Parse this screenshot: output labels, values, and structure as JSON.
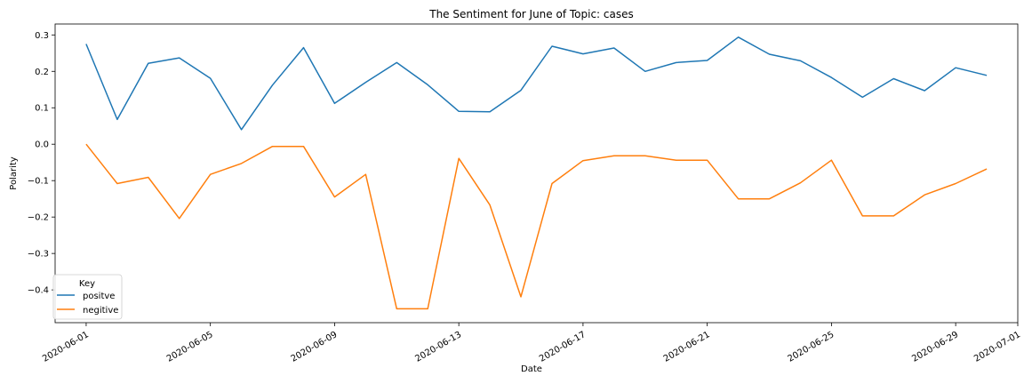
{
  "chart_data": {
    "type": "line",
    "title": "The Sentiment for June of Topic: cases",
    "xlabel": "Date",
    "ylabel": "Polarity",
    "x_start": "2020-06-01",
    "x": [
      "2020-06-01",
      "2020-06-02",
      "2020-06-03",
      "2020-06-04",
      "2020-06-05",
      "2020-06-06",
      "2020-06-07",
      "2020-06-08",
      "2020-06-09",
      "2020-06-10",
      "2020-06-11",
      "2020-06-12",
      "2020-06-13",
      "2020-06-14",
      "2020-06-15",
      "2020-06-16",
      "2020-06-17",
      "2020-06-18",
      "2020-06-19",
      "2020-06-20",
      "2020-06-21",
      "2020-06-22",
      "2020-06-23",
      "2020-06-24",
      "2020-06-25",
      "2020-06-26",
      "2020-06-27",
      "2020-06-28",
      "2020-06-29",
      "2020-06-30"
    ],
    "x_ticks": [
      "2020-06-01",
      "2020-06-05",
      "2020-06-09",
      "2020-06-13",
      "2020-06-17",
      "2020-06-21",
      "2020-06-25",
      "2020-06-29",
      "2020-07-01"
    ],
    "y_ticks": [
      0.3,
      0.2,
      0.1,
      0.0,
      -0.1,
      -0.2,
      -0.3,
      -0.4
    ],
    "y_tick_labels": [
      "0.3",
      "0.2",
      "0.1",
      "0.0",
      "−0.1",
      "−0.2",
      "−0.3",
      "−0.4"
    ],
    "xlim": [
      "2020-05-31",
      "2020-07-01"
    ],
    "ylim": [
      -0.49,
      0.33
    ],
    "grid": false,
    "legend": {
      "title": "Key",
      "placement": "lower-left"
    },
    "series": [
      {
        "name": "positve",
        "color": "#1f77b4",
        "values": [
          0.275,
          0.068,
          0.222,
          0.237,
          0.181,
          0.04,
          0.162,
          0.265,
          0.112,
          0.17,
          0.224,
          0.163,
          0.09,
          0.089,
          0.148,
          0.269,
          0.248,
          0.264,
          0.2,
          0.224,
          0.23,
          0.294,
          0.247,
          0.229,
          0.183,
          0.129,
          0.18,
          0.147,
          0.21,
          0.189
        ]
      },
      {
        "name": "negitive",
        "color": "#ff7f0e",
        "values": [
          0.0,
          -0.108,
          -0.091,
          -0.204,
          -0.083,
          -0.053,
          -0.006,
          -0.006,
          -0.145,
          -0.083,
          -0.452,
          -0.452,
          -0.039,
          -0.167,
          -0.419,
          -0.108,
          -0.045,
          -0.032,
          -0.032,
          -0.044,
          -0.044,
          -0.15,
          -0.15,
          -0.106,
          -0.044,
          -0.197,
          -0.197,
          -0.139,
          -0.108,
          -0.068
        ]
      }
    ]
  }
}
